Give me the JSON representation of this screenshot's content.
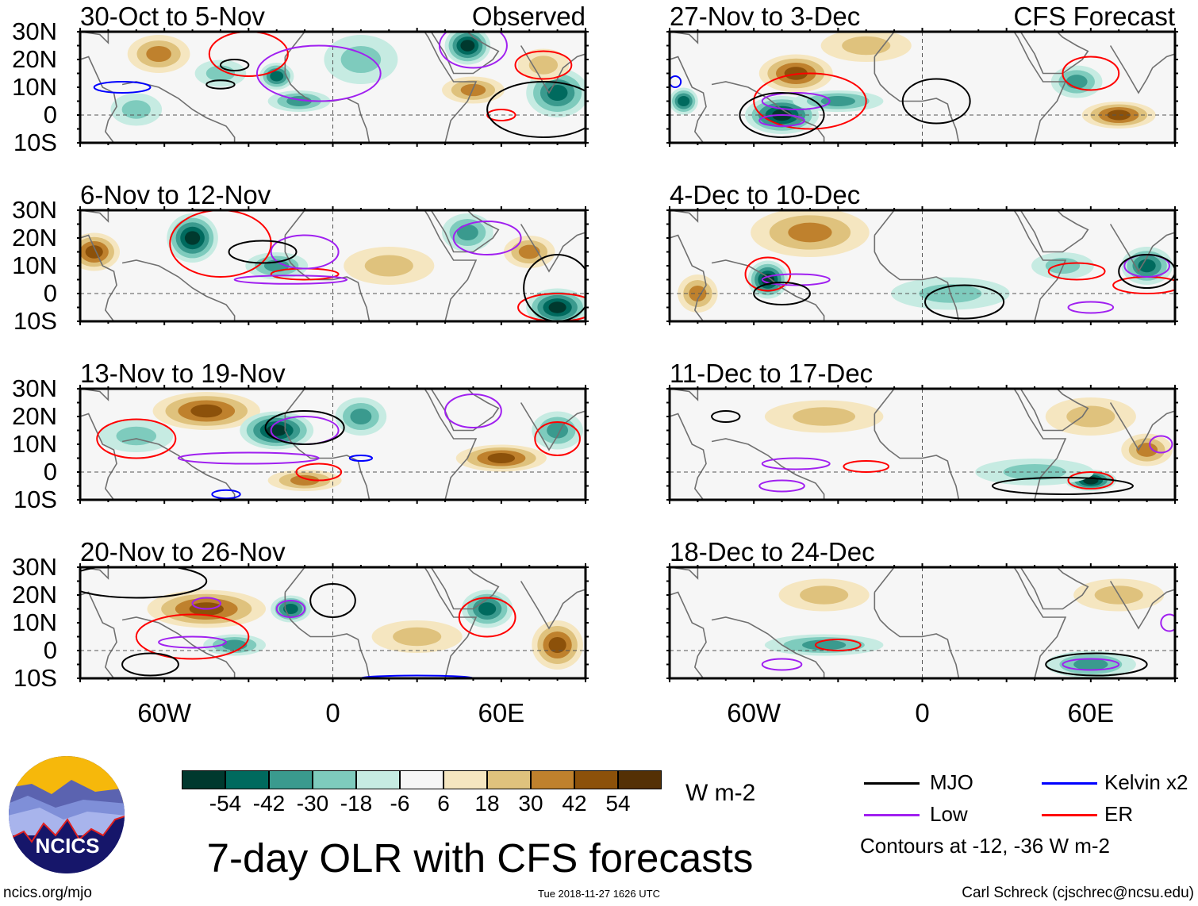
{
  "panels": [
    {
      "title": "30-Oct to 5-Nov",
      "label": "Observed",
      "shade": [
        [
          -62,
          22,
          10,
          6,
          30
        ],
        [
          -40,
          15,
          8,
          4,
          -18
        ],
        [
          -20,
          14,
          5,
          4,
          -42
        ],
        [
          48,
          25,
          7,
          6,
          -54
        ],
        [
          80,
          8,
          10,
          8,
          -42
        ],
        [
          50,
          9,
          10,
          4,
          30
        ],
        [
          -70,
          2,
          8,
          5,
          -18
        ],
        [
          10,
          20,
          12,
          8,
          -18
        ],
        [
          -12,
          5,
          10,
          3,
          -30
        ],
        [
          75,
          18,
          8,
          5,
          18
        ]
      ],
      "contours": [
        [
          "ER",
          -30,
          22,
          14,
          8
        ],
        [
          "ER",
          75,
          18,
          10,
          5
        ],
        [
          "ER",
          60,
          0,
          5,
          2
        ],
        [
          "Low",
          -5,
          15,
          22,
          10
        ],
        [
          "Low",
          50,
          25,
          12,
          8
        ],
        [
          "MJO",
          -35,
          18,
          5,
          2
        ],
        [
          "MJO",
          -40,
          11,
          5,
          1.5
        ],
        [
          "MJO",
          75,
          2,
          20,
          10
        ],
        [
          "Kelvin",
          -75,
          10,
          10,
          2
        ]
      ]
    },
    {
      "title": "6-Nov to 12-Nov",
      "label": "",
      "shade": [
        [
          -85,
          15,
          8,
          6,
          42
        ],
        [
          -50,
          20,
          8,
          8,
          -54
        ],
        [
          -20,
          10,
          10,
          4,
          -30
        ],
        [
          48,
          22,
          8,
          6,
          -30
        ],
        [
          80,
          -5,
          10,
          6,
          -54
        ],
        [
          20,
          10,
          15,
          6,
          18
        ],
        [
          70,
          15,
          8,
          5,
          30
        ]
      ],
      "contours": [
        [
          "ER",
          -40,
          18,
          18,
          12
        ],
        [
          "ER",
          -10,
          7,
          12,
          2
        ],
        [
          "ER",
          80,
          -5,
          14,
          5
        ],
        [
          "Low",
          -15,
          5,
          20,
          1.5
        ],
        [
          "Low",
          -10,
          15,
          12,
          6
        ],
        [
          "Low",
          55,
          20,
          12,
          6
        ],
        [
          "MJO",
          -25,
          15,
          12,
          4
        ],
        [
          "MJO",
          80,
          2,
          12,
          12
        ]
      ]
    },
    {
      "title": "13-Nov to 19-Nov",
      "label": "",
      "shade": [
        [
          -45,
          22,
          18,
          6,
          42
        ],
        [
          -20,
          15,
          12,
          6,
          -54
        ],
        [
          10,
          20,
          8,
          6,
          -30
        ],
        [
          60,
          5,
          15,
          4,
          42
        ],
        [
          -70,
          13,
          12,
          5,
          -18
        ],
        [
          80,
          15,
          8,
          6,
          -30
        ],
        [
          -10,
          -3,
          12,
          3,
          30
        ]
      ],
      "contours": [
        [
          "ER",
          -70,
          12,
          14,
          7
        ],
        [
          "ER",
          -5,
          0,
          8,
          3
        ],
        [
          "ER",
          80,
          12,
          8,
          6
        ],
        [
          "Low",
          -30,
          5,
          25,
          2
        ],
        [
          "Low",
          50,
          22,
          10,
          6
        ],
        [
          "Low",
          -10,
          15,
          12,
          5
        ],
        [
          "MJO",
          -10,
          16,
          14,
          6
        ],
        [
          "Kelvin",
          -38,
          -8,
          5,
          1.5
        ],
        [
          "Kelvin",
          10,
          5,
          4,
          1
        ]
      ]
    },
    {
      "title": "20-Nov to 26-Nov",
      "label": "",
      "shade": [
        [
          -45,
          15,
          20,
          6,
          42
        ],
        [
          -15,
          15,
          6,
          4,
          -42
        ],
        [
          55,
          15,
          8,
          6,
          -42
        ],
        [
          80,
          2,
          8,
          8,
          42
        ],
        [
          -35,
          2,
          10,
          3,
          -30
        ],
        [
          30,
          5,
          15,
          5,
          18
        ]
      ],
      "contours": [
        [
          "ER",
          -50,
          5,
          20,
          8
        ],
        [
          "ER",
          55,
          12,
          10,
          7
        ],
        [
          "Low",
          -45,
          17,
          5,
          2
        ],
        [
          "Low",
          -15,
          15,
          5,
          3
        ],
        [
          "Low",
          -50,
          3,
          12,
          2
        ],
        [
          "MJO",
          -70,
          25,
          25,
          6
        ],
        [
          "MJO",
          -65,
          -5,
          10,
          4
        ],
        [
          "MJO",
          0,
          18,
          8,
          6
        ],
        [
          "Kelvin",
          30,
          -10,
          20,
          1
        ]
      ]
    },
    {
      "title": "27-Nov to 3-Dec",
      "label": "CFS Forecast",
      "shade": [
        [
          -45,
          15,
          12,
          6,
          42
        ],
        [
          -50,
          0,
          12,
          6,
          -54
        ],
        [
          -30,
          5,
          15,
          3,
          -30
        ],
        [
          70,
          0,
          12,
          4,
          42
        ],
        [
          55,
          12,
          8,
          5,
          -30
        ],
        [
          -85,
          5,
          4,
          4,
          -42
        ],
        [
          -20,
          25,
          15,
          5,
          18
        ]
      ],
      "contours": [
        [
          "ER",
          -40,
          5,
          20,
          10
        ],
        [
          "ER",
          60,
          15,
          10,
          6
        ],
        [
          "Low",
          -50,
          -2,
          8,
          2
        ],
        [
          "Low",
          -45,
          5,
          12,
          3
        ],
        [
          "MJO",
          -50,
          0,
          15,
          8
        ],
        [
          "MJO",
          5,
          5,
          12,
          8
        ],
        [
          "Kelvin",
          -88,
          12,
          2,
          2
        ]
      ]
    },
    {
      "title": "4-Dec to 10-Dec",
      "label": "",
      "shade": [
        [
          -40,
          22,
          20,
          8,
          30
        ],
        [
          -55,
          5,
          6,
          6,
          -54
        ],
        [
          80,
          10,
          8,
          6,
          -42
        ],
        [
          10,
          0,
          20,
          5,
          -18
        ],
        [
          -80,
          0,
          6,
          6,
          30
        ],
        [
          50,
          10,
          10,
          4,
          -18
        ]
      ],
      "contours": [
        [
          "ER",
          -55,
          7,
          8,
          6
        ],
        [
          "ER",
          55,
          8,
          10,
          3
        ],
        [
          "ER",
          80,
          3,
          12,
          3
        ],
        [
          "Low",
          -45,
          5,
          12,
          2
        ],
        [
          "Low",
          80,
          10,
          8,
          4
        ],
        [
          "Low",
          60,
          -5,
          8,
          2
        ],
        [
          "MJO",
          -50,
          0,
          10,
          4
        ],
        [
          "MJO",
          15,
          -3,
          14,
          6
        ],
        [
          "MJO",
          80,
          8,
          10,
          6
        ]
      ]
    },
    {
      "title": "11-Dec to 17-Dec",
      "label": "",
      "shade": [
        [
          -35,
          20,
          20,
          5,
          18
        ],
        [
          60,
          -3,
          8,
          3,
          -54
        ],
        [
          80,
          8,
          8,
          5,
          30
        ],
        [
          40,
          0,
          20,
          4,
          -18
        ],
        [
          60,
          20,
          15,
          6,
          18
        ]
      ],
      "contours": [
        [
          "ER",
          -20,
          2,
          8,
          2
        ],
        [
          "ER",
          60,
          -3,
          8,
          3
        ],
        [
          "Low",
          -45,
          3,
          12,
          2
        ],
        [
          "Low",
          -50,
          -5,
          8,
          2
        ],
        [
          "Low",
          85,
          10,
          4,
          3
        ],
        [
          "MJO",
          50,
          -5,
          25,
          3
        ],
        [
          "MJO",
          -70,
          20,
          5,
          2
        ]
      ]
    },
    {
      "title": "18-Dec to 24-Dec",
      "label": "",
      "shade": [
        [
          -35,
          2,
          20,
          3,
          -30
        ],
        [
          60,
          -5,
          15,
          4,
          -30
        ],
        [
          70,
          20,
          15,
          5,
          18
        ],
        [
          -35,
          20,
          15,
          5,
          18
        ]
      ],
      "contours": [
        [
          "ER",
          -30,
          2,
          8,
          2
        ],
        [
          "Low",
          -50,
          -5,
          7,
          2
        ],
        [
          "Low",
          60,
          -5,
          10,
          2
        ],
        [
          "MJO",
          62,
          -5,
          18,
          4
        ],
        [
          "Low",
          88,
          10,
          3,
          3
        ]
      ]
    }
  ],
  "lat_labels": [
    "30N",
    "20N",
    "10N",
    "0",
    "10S"
  ],
  "lon_labels": [
    {
      "lon": -60,
      "text": "60W"
    },
    {
      "lon": 0,
      "text": "0"
    },
    {
      "lon": 60,
      "text": "60E"
    }
  ],
  "colorbar": {
    "colors": [
      "#00392e",
      "#006a5e",
      "#3a9a8e",
      "#7ecbbd",
      "#c6ebe2",
      "#f6f6f6",
      "#f5e6c0",
      "#dfc27d",
      "#bf812d",
      "#8c510a",
      "#543005"
    ],
    "ticks": [
      "-54",
      "-42",
      "-30",
      "-18",
      "-6",
      "6",
      "18",
      "30",
      "42",
      "54"
    ],
    "units": "W m-2"
  },
  "legend": {
    "items": [
      {
        "name": "MJO",
        "color": "#000000"
      },
      {
        "name": "Kelvin x2",
        "color": "#0000ff"
      },
      {
        "name": "Low",
        "color": "#a020f0"
      },
      {
        "name": "ER",
        "color": "#ff0000"
      }
    ],
    "note": "Contours at -12, -36 W m-2"
  },
  "title": "7-day OLR with CFS forecasts",
  "logo_text": "NCICS",
  "footer": {
    "url": "ncics.org/mjo",
    "timestamp": "Tue 2018-11-27 1626 UTC",
    "author": "Carl Schreck (cjschrec@ncsu.edu)"
  }
}
